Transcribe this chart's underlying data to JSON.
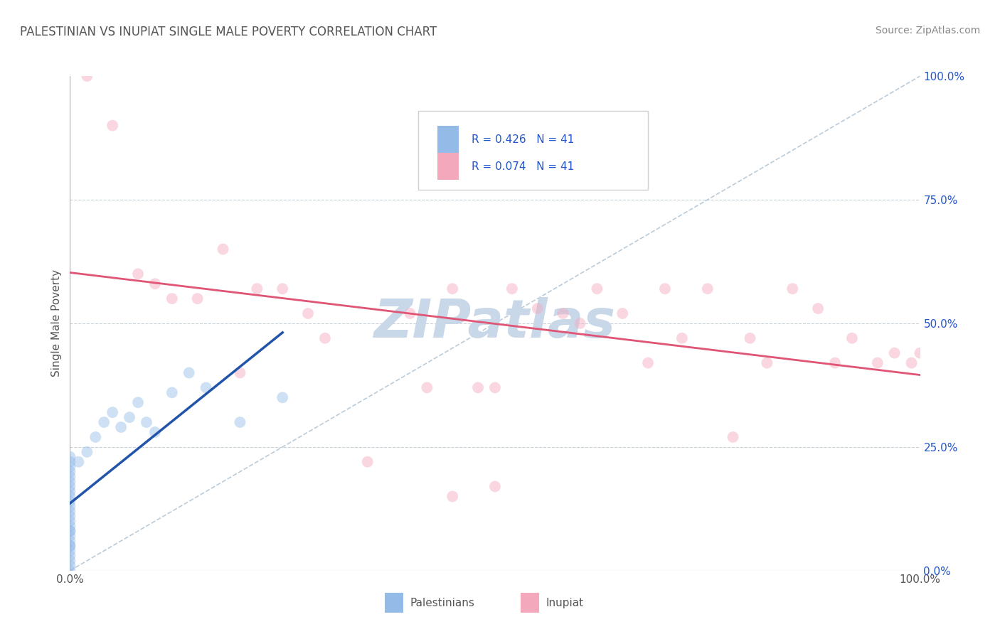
{
  "title": "PALESTINIAN VS INUPIAT SINGLE MALE POVERTY CORRELATION CHART",
  "source": "Source: ZipAtlas.com",
  "ylabel": "Single Male Poverty",
  "ytick_labels": [
    "0.0%",
    "25.0%",
    "50.0%",
    "75.0%",
    "100.0%"
  ],
  "ytick_values": [
    0,
    25,
    50,
    75,
    100
  ],
  "legend_blue_label": "Palestinians",
  "legend_pink_label": "Inupiat",
  "legend_r_blue": "R = 0.426",
  "legend_r_pink": "R = 0.074",
  "legend_n": "N = 41",
  "blue_color": "#94BBE8",
  "pink_color": "#F4A8BC",
  "blue_line_color": "#2255AA",
  "pink_line_color": "#E05575",
  "diagonal_color": "#AABFCF",
  "background_color": "#FFFFFF",
  "grid_color": "#C8D0D8",
  "title_color": "#555555",
  "source_color": "#888888",
  "legend_text_color": "#2255CC",
  "watermark_color": "#C8D8E8",
  "palestinian_x": [
    0,
    0,
    0,
    0,
    0,
    0,
    0,
    0,
    0,
    0,
    0,
    0,
    0,
    0,
    0,
    0,
    0,
    0,
    0,
    0,
    0,
    0,
    0,
    0,
    0,
    0,
    1,
    2,
    3,
    4,
    5,
    6,
    7,
    8,
    9,
    10,
    12,
    14,
    16,
    20,
    25
  ],
  "palestinian_y": [
    0,
    1,
    2,
    3,
    4,
    5,
    6,
    7,
    8,
    9,
    10,
    11,
    12,
    13,
    14,
    15,
    16,
    17,
    18,
    19,
    20,
    21,
    22,
    23,
    5,
    8,
    22,
    24,
    27,
    30,
    32,
    29,
    31,
    34,
    30,
    28,
    36,
    40,
    37,
    30,
    35
  ],
  "inupiat_x": [
    2,
    5,
    8,
    10,
    12,
    15,
    18,
    20,
    22,
    25,
    28,
    30,
    35,
    40,
    42,
    45,
    48,
    50,
    52,
    55,
    58,
    60,
    62,
    65,
    68,
    70,
    72,
    75,
    78,
    80,
    82,
    85,
    88,
    90,
    92,
    95,
    97,
    99,
    100,
    45,
    50
  ],
  "inupiat_y": [
    100,
    90,
    60,
    58,
    55,
    55,
    65,
    40,
    57,
    57,
    52,
    47,
    22,
    52,
    37,
    57,
    37,
    37,
    57,
    53,
    52,
    50,
    57,
    52,
    42,
    57,
    47,
    57,
    27,
    47,
    42,
    57,
    53,
    42,
    47,
    42,
    44,
    42,
    44,
    15,
    17
  ],
  "marker_size": 130,
  "alpha": 0.45,
  "figsize": [
    14.06,
    8.92
  ],
  "dpi": 100
}
